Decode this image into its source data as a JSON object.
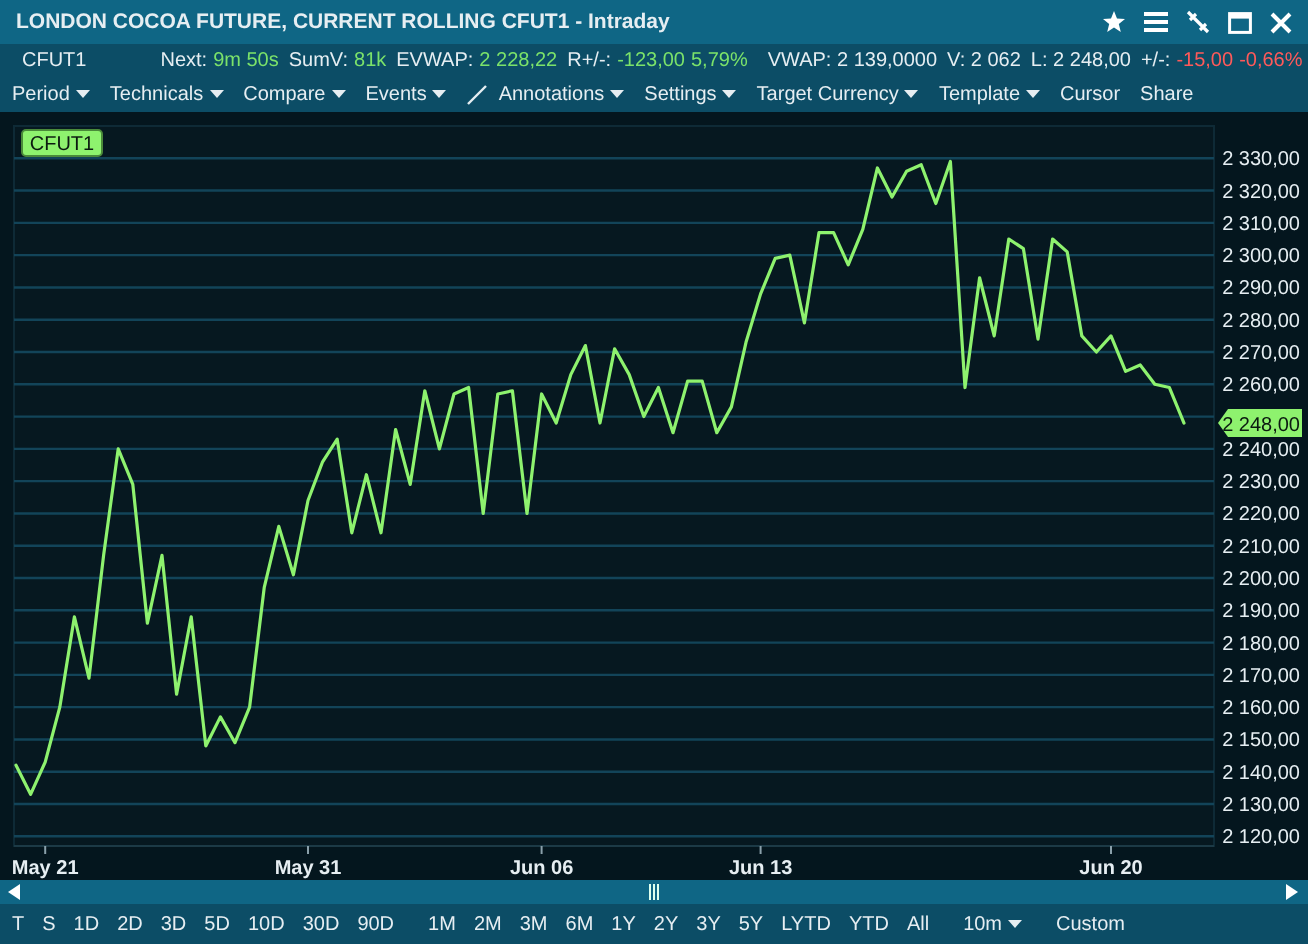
{
  "chart_data": {
    "type": "line",
    "title": "LONDON COCOA FUTURE, CURRENT ROLLING CFUT1 - Intraday",
    "categories": [
      null,
      null,
      "May 21",
      null,
      null,
      null,
      null,
      null,
      null,
      null,
      null,
      null,
      null,
      null,
      null,
      null,
      null,
      null,
      null,
      null,
      "May 31",
      null,
      null,
      null,
      null,
      null,
      null,
      null,
      null,
      null,
      null,
      null,
      null,
      null,
      null,
      null,
      "Jun 06",
      null,
      null,
      null,
      null,
      null,
      null,
      null,
      null,
      null,
      null,
      null,
      null,
      null,
      null,
      "Jun 13",
      null,
      null,
      null,
      null,
      null,
      null,
      null,
      null,
      null,
      null,
      null,
      null,
      null,
      null,
      null,
      null,
      null,
      null,
      null,
      null,
      null,
      null,
      null,
      "Jun 20",
      null,
      null,
      null,
      null,
      null
    ],
    "ylim": [
      2117,
      2340
    ],
    "yticks": [
      {
        "value": 2120,
        "label": "2 120,00"
      },
      {
        "value": 2130,
        "label": "2 130,00"
      },
      {
        "value": 2140,
        "label": "2 140,00"
      },
      {
        "value": 2150,
        "label": "2 150,00"
      },
      {
        "value": 2160,
        "label": "2 160,00"
      },
      {
        "value": 2170,
        "label": "2 170,00"
      },
      {
        "value": 2180,
        "label": "2 180,00"
      },
      {
        "value": 2190,
        "label": "2 190,00"
      },
      {
        "value": 2200,
        "label": "2 200,00"
      },
      {
        "value": 2210,
        "label": "2 210,00"
      },
      {
        "value": 2220,
        "label": "2 220,00"
      },
      {
        "value": 2230,
        "label": "2 230,00"
      },
      {
        "value": 2240,
        "label": "2 240,00"
      },
      {
        "value": 2250,
        "label": null
      },
      {
        "value": 2260,
        "label": "2 260,00"
      },
      {
        "value": 2270,
        "label": "2 270,00"
      },
      {
        "value": 2280,
        "label": "2 280,00"
      },
      {
        "value": 2290,
        "label": "2 290,00"
      },
      {
        "value": 2300,
        "label": "2 300,00"
      },
      {
        "value": 2310,
        "label": "2 310,00"
      },
      {
        "value": 2320,
        "label": "2 320,00"
      },
      {
        "value": 2330,
        "label": "2 330,00"
      }
    ],
    "grid": "y",
    "legend": "top left",
    "marker": "none",
    "line_style": "solid",
    "series": [
      {
        "name": "CFUT1",
        "color": "#8ef26e",
        "values": [
          2142,
          2133,
          2143,
          2160,
          2188,
          2169,
          2207,
          2240,
          2229,
          2186,
          2207,
          2164,
          2188,
          2148,
          2157,
          2149,
          2160,
          2197,
          2216,
          2201,
          2224,
          2236,
          2243,
          2214,
          2232,
          2214,
          2246,
          2229,
          2258,
          2240,
          2257,
          2259,
          2220,
          2257,
          2258,
          2220,
          2257,
          2248,
          2263,
          2272,
          2248,
          2271,
          2263,
          2250,
          2259,
          2245,
          2261,
          2261,
          2245,
          2253,
          2273,
          2288,
          2299,
          2300,
          2279,
          2307,
          2307,
          2297,
          2308,
          2327,
          2318,
          2326,
          2328,
          2316,
          2329,
          2259,
          2293,
          2275,
          2305,
          2302,
          2274,
          2305,
          2301,
          2275,
          2270,
          2275,
          2264,
          2266,
          2260,
          2259,
          2248
        ]
      }
    ],
    "annotations": [
      "CFUT1",
      "Next:",
      "9m 50s",
      "SumV:",
      "81k",
      "EVWAP:",
      "2 228,22",
      "R+/-:",
      "-123,00",
      "5,79%",
      "VWAP: 2 139,0000",
      "V: 2 062",
      "L: 2 248,00",
      "+/-:",
      "-15,00",
      "-0,66%",
      "Period",
      "Technicals",
      "Compare",
      "Events",
      "Annotations",
      "Settings",
      "Target Currency",
      "Template",
      "Cursor",
      "Share",
      "T",
      "S",
      "1D",
      "2D",
      "3D",
      "5D",
      "10D",
      "30D",
      "90D",
      "1M",
      "2M",
      "3M",
      "6M",
      "1Y",
      "2Y",
      "3Y",
      "5Y",
      "LYTD",
      "YTD",
      "All",
      "10m",
      "Custom",
      {
        "text": "2 248,00",
        "y": 2248
      }
    ]
  }
}
